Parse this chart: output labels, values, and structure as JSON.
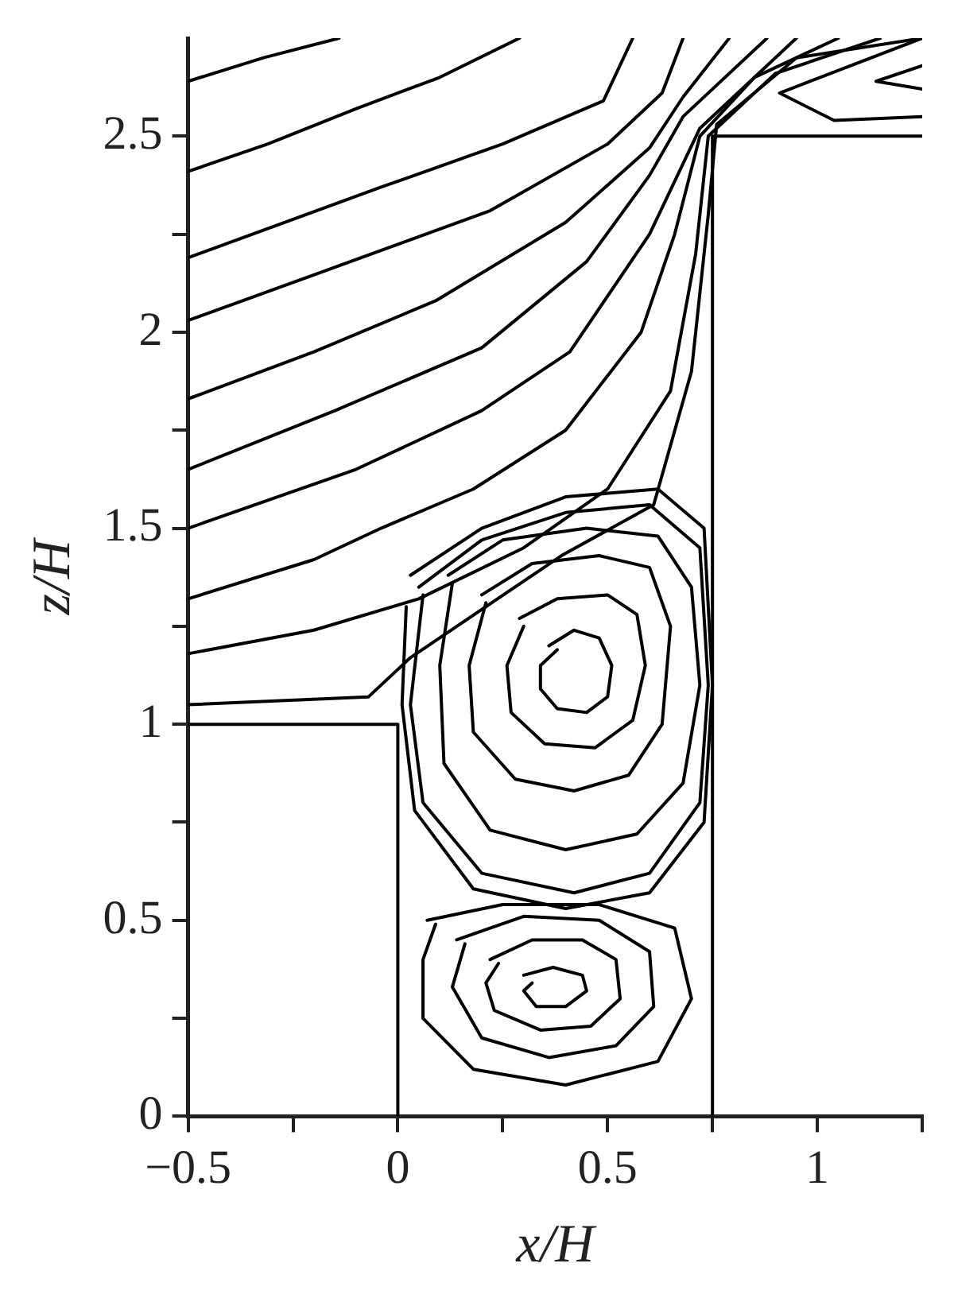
{
  "chart_data": {
    "type": "line",
    "xlabel": "x/H",
    "ylabel": "z/H",
    "xlim": [
      -0.5,
      1.25
    ],
    "ylim": [
      0,
      2.75
    ],
    "xticks": [
      {
        "value": -0.5,
        "label": "−0.5"
      },
      {
        "value": -0.25,
        "label": null
      },
      0,
      {
        "value": 0.25,
        "label": null
      },
      0.5,
      {
        "value": 0.75,
        "label": null
      },
      1,
      {
        "value": 1.25,
        "label": null
      }
    ],
    "yticks": [
      0,
      {
        "value": 0.25,
        "label": null
      },
      0.5,
      {
        "value": 0.75,
        "label": null
      },
      1,
      {
        "value": 1.25,
        "label": null
      },
      1.5,
      {
        "value": 1.75,
        "label": null
      },
      2,
      {
        "value": 2.25,
        "label": null
      },
      2.5
    ],
    "grid": false,
    "legend": false,
    "marker": "none",
    "line_style": "solid",
    "series": [
      {
        "color": "#000000",
        "x": [
          -0.5,
          0,
          0
        ],
        "values": [
          1,
          1,
          0
        ]
      },
      {
        "color": "#000000",
        "x": [
          0.75,
          0.75,
          1.25
        ],
        "values": [
          0,
          2.5,
          2.5
        ]
      },
      {
        "color": "#000000",
        "x": [
          -0.5,
          -0.32,
          -0.14
        ],
        "values": [
          2.64,
          2.7,
          2.75
        ]
      },
      {
        "color": "#000000",
        "x": [
          -0.5,
          -0.31,
          -0.1,
          0.1,
          0.29
        ],
        "values": [
          2.41,
          2.48,
          2.57,
          2.65,
          2.75
        ]
      },
      {
        "color": "#000000",
        "x": [
          -0.5,
          -0.04,
          0.25,
          0.49,
          0.56
        ],
        "values": [
          2.19,
          2.37,
          2.48,
          2.59,
          2.75
        ]
      },
      {
        "color": "#000000",
        "x": [
          -0.5,
          -0.19,
          0.22,
          0.5,
          0.63,
          0.68
        ],
        "values": [
          2.03,
          2.15,
          2.31,
          2.48,
          2.61,
          2.75
        ]
      },
      {
        "color": "#000000",
        "x": [
          -0.5,
          -0.2,
          0.09,
          0.4,
          0.6,
          0.68,
          0.79
        ],
        "values": [
          1.83,
          1.95,
          2.08,
          2.28,
          2.47,
          2.6,
          2.75
        ]
      },
      {
        "color": "#000000",
        "x": [
          -0.5,
          -0.15,
          0.2,
          0.45,
          0.6,
          0.68,
          0.88
        ],
        "values": [
          1.65,
          1.8,
          1.96,
          2.18,
          2.4,
          2.55,
          2.75
        ]
      },
      {
        "color": "#000000",
        "x": [
          -0.5,
          -0.1,
          0.2,
          0.41,
          0.6,
          0.72,
          0.95
        ],
        "values": [
          1.5,
          1.65,
          1.8,
          1.95,
          2.25,
          2.52,
          2.75
        ]
      },
      {
        "color": "#000000",
        "x": [
          -0.5,
          -0.2,
          -0.04,
          0.18,
          0.4,
          0.58,
          0.66,
          0.72,
          0.85,
          1.05
        ],
        "values": [
          1.32,
          1.42,
          1.5,
          1.6,
          1.75,
          2,
          2.25,
          2.5,
          2.65,
          2.75
        ]
      },
      {
        "color": "#000000",
        "x": [
          -0.5,
          -0.2,
          0.05,
          0.3,
          0.5,
          0.65,
          0.71,
          0.74,
          0.9,
          1.15
        ],
        "values": [
          1.18,
          1.24,
          1.32,
          1.45,
          1.6,
          1.85,
          2.2,
          2.5,
          2.66,
          2.75
        ]
      },
      {
        "color": "#000000",
        "x": [
          -0.5,
          -0.07,
          0.03,
          0.39,
          0.61,
          0.7,
          0.74,
          0.76,
          0.95,
          1.25
        ],
        "values": [
          1.05,
          1.07,
          1.17,
          1.43,
          1.56,
          1.9,
          2.3,
          2.53,
          2.7,
          2.75
        ]
      },
      {
        "color": "#000000",
        "x": [
          1.25,
          0.91,
          1.04,
          1.25
        ],
        "values": [
          2.75,
          2.61,
          2.54,
          2.55
        ]
      },
      {
        "color": "#000000",
        "x": [
          1.25,
          1.14,
          1.25
        ],
        "values": [
          2.68,
          2.64,
          2.62
        ]
      },
      {
        "color": "#000000",
        "x": [
          0.36,
          0.42,
          0.48,
          0.51,
          0.5,
          0.45,
          0.38,
          0.34,
          0.34,
          0.38
        ],
        "values": [
          1.2,
          1.24,
          1.22,
          1.15,
          1.07,
          1.03,
          1.04,
          1.09,
          1.15,
          1.19
        ]
      },
      {
        "color": "#000000",
        "x": [
          0.29,
          0.38,
          0.5,
          0.57,
          0.59,
          0.56,
          0.47,
          0.35,
          0.27,
          0.26,
          0.3
        ],
        "values": [
          1.27,
          1.32,
          1.33,
          1.28,
          1.15,
          1.01,
          0.94,
          0.95,
          1.03,
          1.15,
          1.25
        ]
      },
      {
        "color": "#000000",
        "x": [
          0.2,
          0.32,
          0.48,
          0.6,
          0.65,
          0.63,
          0.55,
          0.42,
          0.28,
          0.18,
          0.17,
          0.21
        ],
        "values": [
          1.33,
          1.41,
          1.43,
          1.4,
          1.25,
          1,
          0.87,
          0.83,
          0.86,
          0.98,
          1.15,
          1.31
        ]
      },
      {
        "color": "#000000",
        "x": [
          0.12,
          0.25,
          0.45,
          0.62,
          0.7,
          0.72,
          0.68,
          0.57,
          0.4,
          0.22,
          0.11,
          0.1,
          0.13
        ],
        "values": [
          1.38,
          1.47,
          1.5,
          1.48,
          1.35,
          1.1,
          0.85,
          0.72,
          0.68,
          0.73,
          0.9,
          1.15,
          1.36
        ]
      },
      {
        "color": "#000000",
        "x": [
          0.05,
          0.2,
          0.4,
          0.6,
          0.72,
          0.74,
          0.72,
          0.6,
          0.42,
          0.2,
          0.06,
          0.03,
          0.06
        ],
        "values": [
          1.35,
          1.47,
          1.54,
          1.56,
          1.45,
          1.1,
          0.8,
          0.62,
          0.57,
          0.62,
          0.8,
          1.05,
          1.33
        ]
      },
      {
        "color": "#000000",
        "x": [
          0.03,
          0.2,
          0.4,
          0.62,
          0.73,
          0.75,
          0.73,
          0.6,
          0.4,
          0.18,
          0.04,
          0.01,
          0.02
        ],
        "values": [
          1.38,
          1.5,
          1.58,
          1.6,
          1.5,
          1.1,
          0.75,
          0.57,
          0.53,
          0.58,
          0.78,
          1.05,
          1.3
        ]
      },
      {
        "color": "#000000",
        "x": [
          0.3,
          0.37,
          0.44,
          0.45,
          0.4,
          0.33,
          0.3,
          0.32
        ],
        "values": [
          0.36,
          0.38,
          0.36,
          0.32,
          0.28,
          0.28,
          0.32,
          0.34
        ]
      },
      {
        "color": "#000000",
        "x": [
          0.22,
          0.32,
          0.44,
          0.52,
          0.53,
          0.46,
          0.34,
          0.23,
          0.21,
          0.24
        ],
        "values": [
          0.4,
          0.45,
          0.45,
          0.4,
          0.3,
          0.23,
          0.22,
          0.27,
          0.34,
          0.39
        ]
      },
      {
        "color": "#000000",
        "x": [
          0.14,
          0.3,
          0.48,
          0.6,
          0.61,
          0.52,
          0.36,
          0.2,
          0.13,
          0.16
        ],
        "values": [
          0.45,
          0.51,
          0.5,
          0.42,
          0.28,
          0.18,
          0.15,
          0.2,
          0.33,
          0.44
        ]
      },
      {
        "color": "#000000",
        "x": [
          0.07,
          0.25,
          0.48,
          0.66,
          0.7,
          0.62,
          0.4,
          0.18,
          0.06,
          0.06,
          0.09
        ],
        "values": [
          0.5,
          0.54,
          0.54,
          0.48,
          0.3,
          0.14,
          0.08,
          0.12,
          0.25,
          0.4,
          0.49
        ]
      }
    ]
  }
}
